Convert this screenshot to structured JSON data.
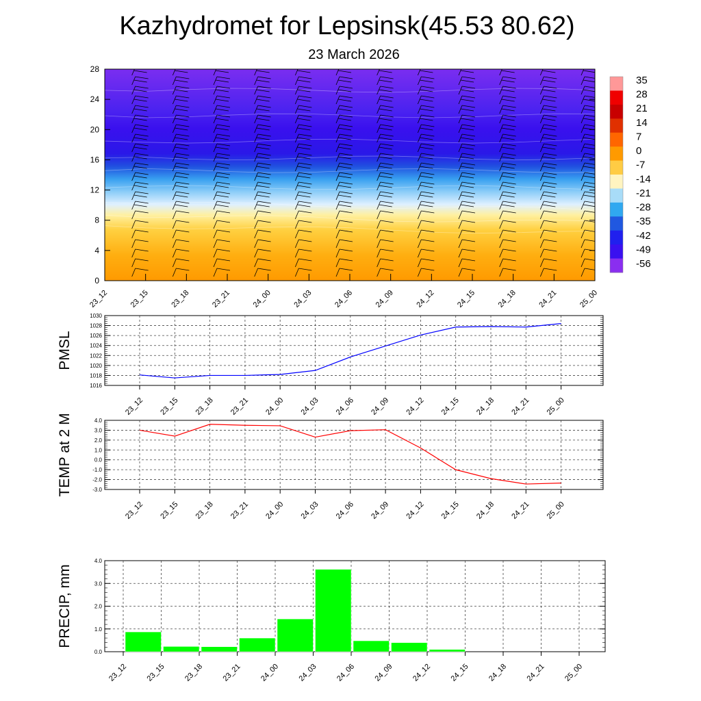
{
  "title": "Kazhydromet for Lepsinsk(45.53 80.62)",
  "subtitle": "23 March 2026",
  "time_labels": [
    "23_12",
    "23_15",
    "23_18",
    "23_21",
    "24_00",
    "24_03",
    "24_06",
    "24_09",
    "24_12",
    "24_15",
    "24_18",
    "24_21",
    "25_00"
  ],
  "colorbar": {
    "labels": [
      "35",
      "28",
      "21",
      "14",
      "7",
      "0",
      "-7",
      "-14",
      "-21",
      "-28",
      "-35",
      "-42",
      "-49",
      "-56"
    ]
  },
  "chart_data": [
    {
      "type": "heatmap",
      "name": "vertical-profile",
      "title": "",
      "ylabel": "",
      "ylim": [
        0,
        28
      ],
      "yticks": [
        0,
        4,
        8,
        12,
        16,
        20,
        24,
        28
      ],
      "variable": "temperature (°C) with wind barbs",
      "levels_km": [
        0,
        4,
        8,
        10,
        12,
        16,
        20,
        24,
        28
      ],
      "temperature_profile_typical": [
        5,
        2,
        -3,
        -10,
        -25,
        -50,
        -58,
        -60,
        -62
      ]
    },
    {
      "type": "line",
      "name": "pmsl",
      "ylabel": "PMSL",
      "ylim": [
        1016,
        1030
      ],
      "yticks": [
        "1016",
        "1018",
        "1020",
        "1022",
        "1024",
        "1026",
        "1028",
        "1030"
      ],
      "categories": [
        "23_12",
        "23_15",
        "23_18",
        "23_21",
        "24_00",
        "24_03",
        "24_06",
        "24_09",
        "24_12",
        "24_15",
        "24_18",
        "24_21",
        "25_00"
      ],
      "values": [
        1018.1,
        1017.5,
        1018.0,
        1018.0,
        1018.2,
        1019.0,
        1021.7,
        1023.9,
        1026.1,
        1027.7,
        1027.8,
        1027.7,
        1028.4
      ],
      "color": "#0000ff"
    },
    {
      "type": "line",
      "name": "temp-2m",
      "ylabel": "TEMP at 2 M",
      "ylim": [
        -3.0,
        4.0
      ],
      "yticks": [
        "-3.0",
        "-2.0",
        "-1.0",
        "0.0",
        "1.0",
        "2.0",
        "3.0",
        "4.0"
      ],
      "categories": [
        "23_12",
        "23_15",
        "23_18",
        "23_21",
        "24_00",
        "24_03",
        "24_06",
        "24_09",
        "24_12",
        "24_15",
        "24_18",
        "24_21",
        "25_00"
      ],
      "values": [
        3.0,
        2.4,
        3.6,
        3.5,
        3.45,
        2.3,
        2.95,
        3.05,
        1.2,
        -1.0,
        -1.9,
        -2.45,
        -2.35
      ],
      "color": "#ff0000"
    },
    {
      "type": "bar",
      "name": "precip",
      "ylabel": "PRECIP, mm",
      "ylim": [
        0,
        4.0
      ],
      "yticks": [
        "0.0",
        "1.0",
        "2.0",
        "3.0",
        "4.0"
      ],
      "categories": [
        "23_12",
        "23_15",
        "23_18",
        "23_21",
        "24_00",
        "24_03",
        "24_06",
        "24_09",
        "24_12",
        "24_15",
        "24_18",
        "24_21",
        "25_00"
      ],
      "values": [
        0,
        0.87,
        0.23,
        0.22,
        0.6,
        1.44,
        3.62,
        0.48,
        0.4,
        0.1,
        0,
        0,
        0
      ],
      "color": "#00ff00"
    }
  ]
}
